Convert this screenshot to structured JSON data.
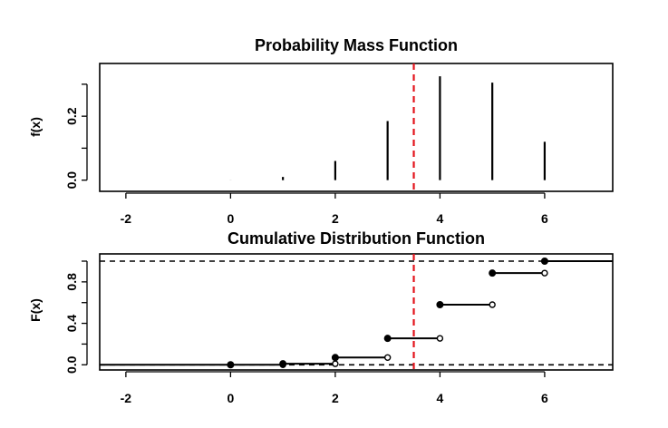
{
  "chart_data": [
    {
      "type": "bar",
      "title": "Probability Mass Function",
      "xlabel": "",
      "ylabel": "f(x)",
      "xlim": [
        -2.5,
        7.3
      ],
      "ylim": [
        -0.035,
        0.365
      ],
      "x_ticks": [
        -2,
        0,
        2,
        4,
        6
      ],
      "x_tick_labels": [
        "-2",
        "0",
        "2",
        "4",
        "6"
      ],
      "y_ticks": [
        0.0,
        0.2
      ],
      "y_tick_labels": [
        "0.0",
        "0.2"
      ],
      "x": [
        0,
        1,
        2,
        3,
        4,
        5,
        6
      ],
      "values": [
        0.0002,
        0.01,
        0.06,
        0.185,
        0.325,
        0.305,
        0.12
      ],
      "reference_line": {
        "x": 3.5,
        "color": "#e3141c",
        "style": "dashed"
      }
    },
    {
      "type": "line",
      "title": "Cumulative Distribution Function",
      "xlabel": "",
      "ylabel": "F(x)",
      "xlim": [
        -2.5,
        7.3
      ],
      "ylim": [
        -0.05,
        1.07
      ],
      "x_ticks": [
        -2,
        0,
        2,
        4,
        6
      ],
      "x_tick_labels": [
        "-2",
        "0",
        "2",
        "4",
        "6"
      ],
      "y_ticks": [
        0.0,
        0.4,
        0.8
      ],
      "y_tick_labels": [
        "0.0",
        "0.4",
        "0.8"
      ],
      "steps": [
        {
          "x_start": 0,
          "x_end": 1,
          "y": 0.0002
        },
        {
          "x_start": 1,
          "x_end": 2,
          "y": 0.01
        },
        {
          "x_start": 2,
          "x_end": 3,
          "y": 0.07
        },
        {
          "x_start": 3,
          "x_end": 4,
          "y": 0.255
        },
        {
          "x_start": 4,
          "x_end": 5,
          "y": 0.58
        },
        {
          "x_start": 5,
          "x_end": 6,
          "y": 0.885
        },
        {
          "x_start": 6,
          "x_end": 7.3,
          "y": 1.0
        }
      ],
      "lower_tail": {
        "x_start": -2.5,
        "x_end": 0,
        "y": 0.0
      },
      "horizontal_dashed_lines": [
        0,
        1
      ],
      "reference_line": {
        "x": 3.5,
        "color": "#e3141c",
        "style": "dashed"
      }
    }
  ]
}
